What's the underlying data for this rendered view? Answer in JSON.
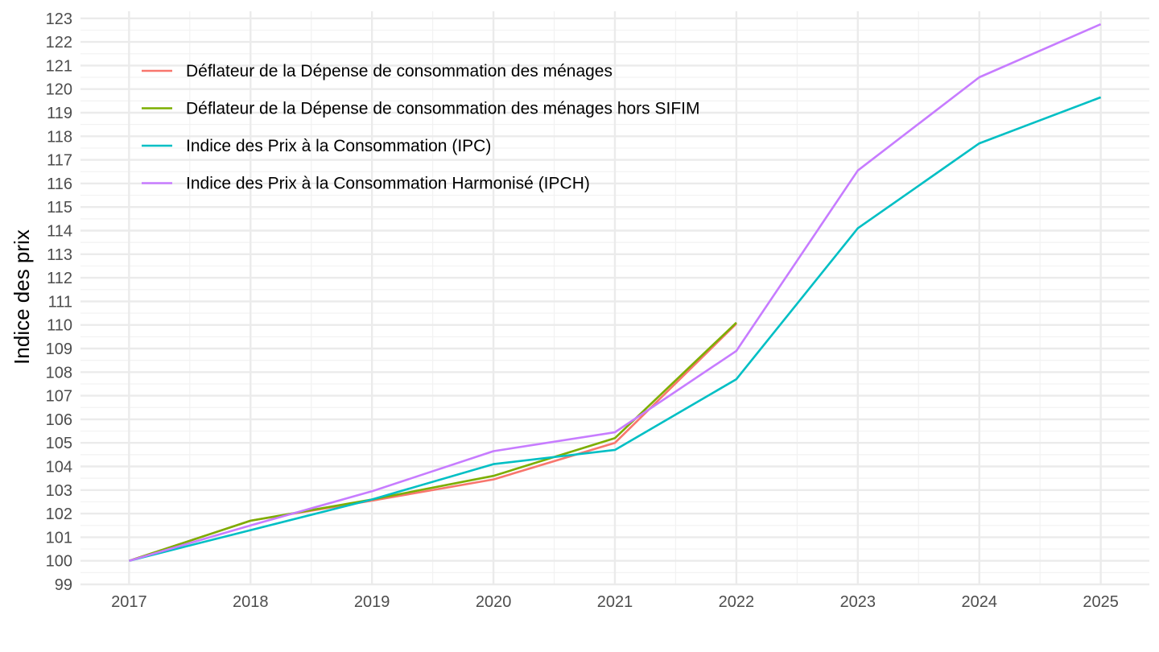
{
  "chart_data": {
    "type": "line",
    "title": "",
    "xlabel": "",
    "ylabel": "Indice des prix",
    "xlim": [
      2016.6,
      2025.4
    ],
    "ylim": [
      99,
      123.3
    ],
    "x_ticks": [
      2017,
      2018,
      2019,
      2020,
      2021,
      2022,
      2023,
      2024,
      2025
    ],
    "y_ticks": [
      99,
      100,
      101,
      102,
      103,
      104,
      105,
      106,
      107,
      108,
      109,
      110,
      111,
      112,
      113,
      114,
      115,
      116,
      117,
      118,
      119,
      120,
      121,
      122,
      123
    ],
    "grid": true,
    "legend_position": "top-left",
    "series": [
      {
        "name": "Déflateur de la Dépense de consommation des ménages",
        "color": "#F8766D",
        "x": [
          2017,
          2018,
          2019,
          2020,
          2021,
          2022
        ],
        "values": [
          100,
          101.7,
          102.55,
          103.45,
          105.0,
          110.05
        ]
      },
      {
        "name": "Déflateur de la Dépense de consommation des ménages hors SIFIM",
        "color": "#7CAE00",
        "x": [
          2017,
          2018,
          2019,
          2020,
          2021,
          2022
        ],
        "values": [
          100,
          101.7,
          102.6,
          103.6,
          105.2,
          110.1
        ]
      },
      {
        "name": "Indice des Prix à la Consommation (IPC)",
        "color": "#00BFC4",
        "x": [
          2017,
          2018,
          2019,
          2020,
          2021,
          2022,
          2023,
          2024,
          2025
        ],
        "values": [
          100,
          101.3,
          102.6,
          104.1,
          104.7,
          107.7,
          114.1,
          117.7,
          119.65
        ]
      },
      {
        "name": "Indice des Prix à la Consommation Harmonisé (IPCH)",
        "color": "#C77CFF",
        "x": [
          2017,
          2018,
          2019,
          2020,
          2021,
          2022,
          2023,
          2024,
          2025
        ],
        "values": [
          100,
          101.5,
          102.95,
          104.65,
          105.45,
          108.9,
          116.55,
          120.5,
          122.75
        ]
      }
    ]
  }
}
